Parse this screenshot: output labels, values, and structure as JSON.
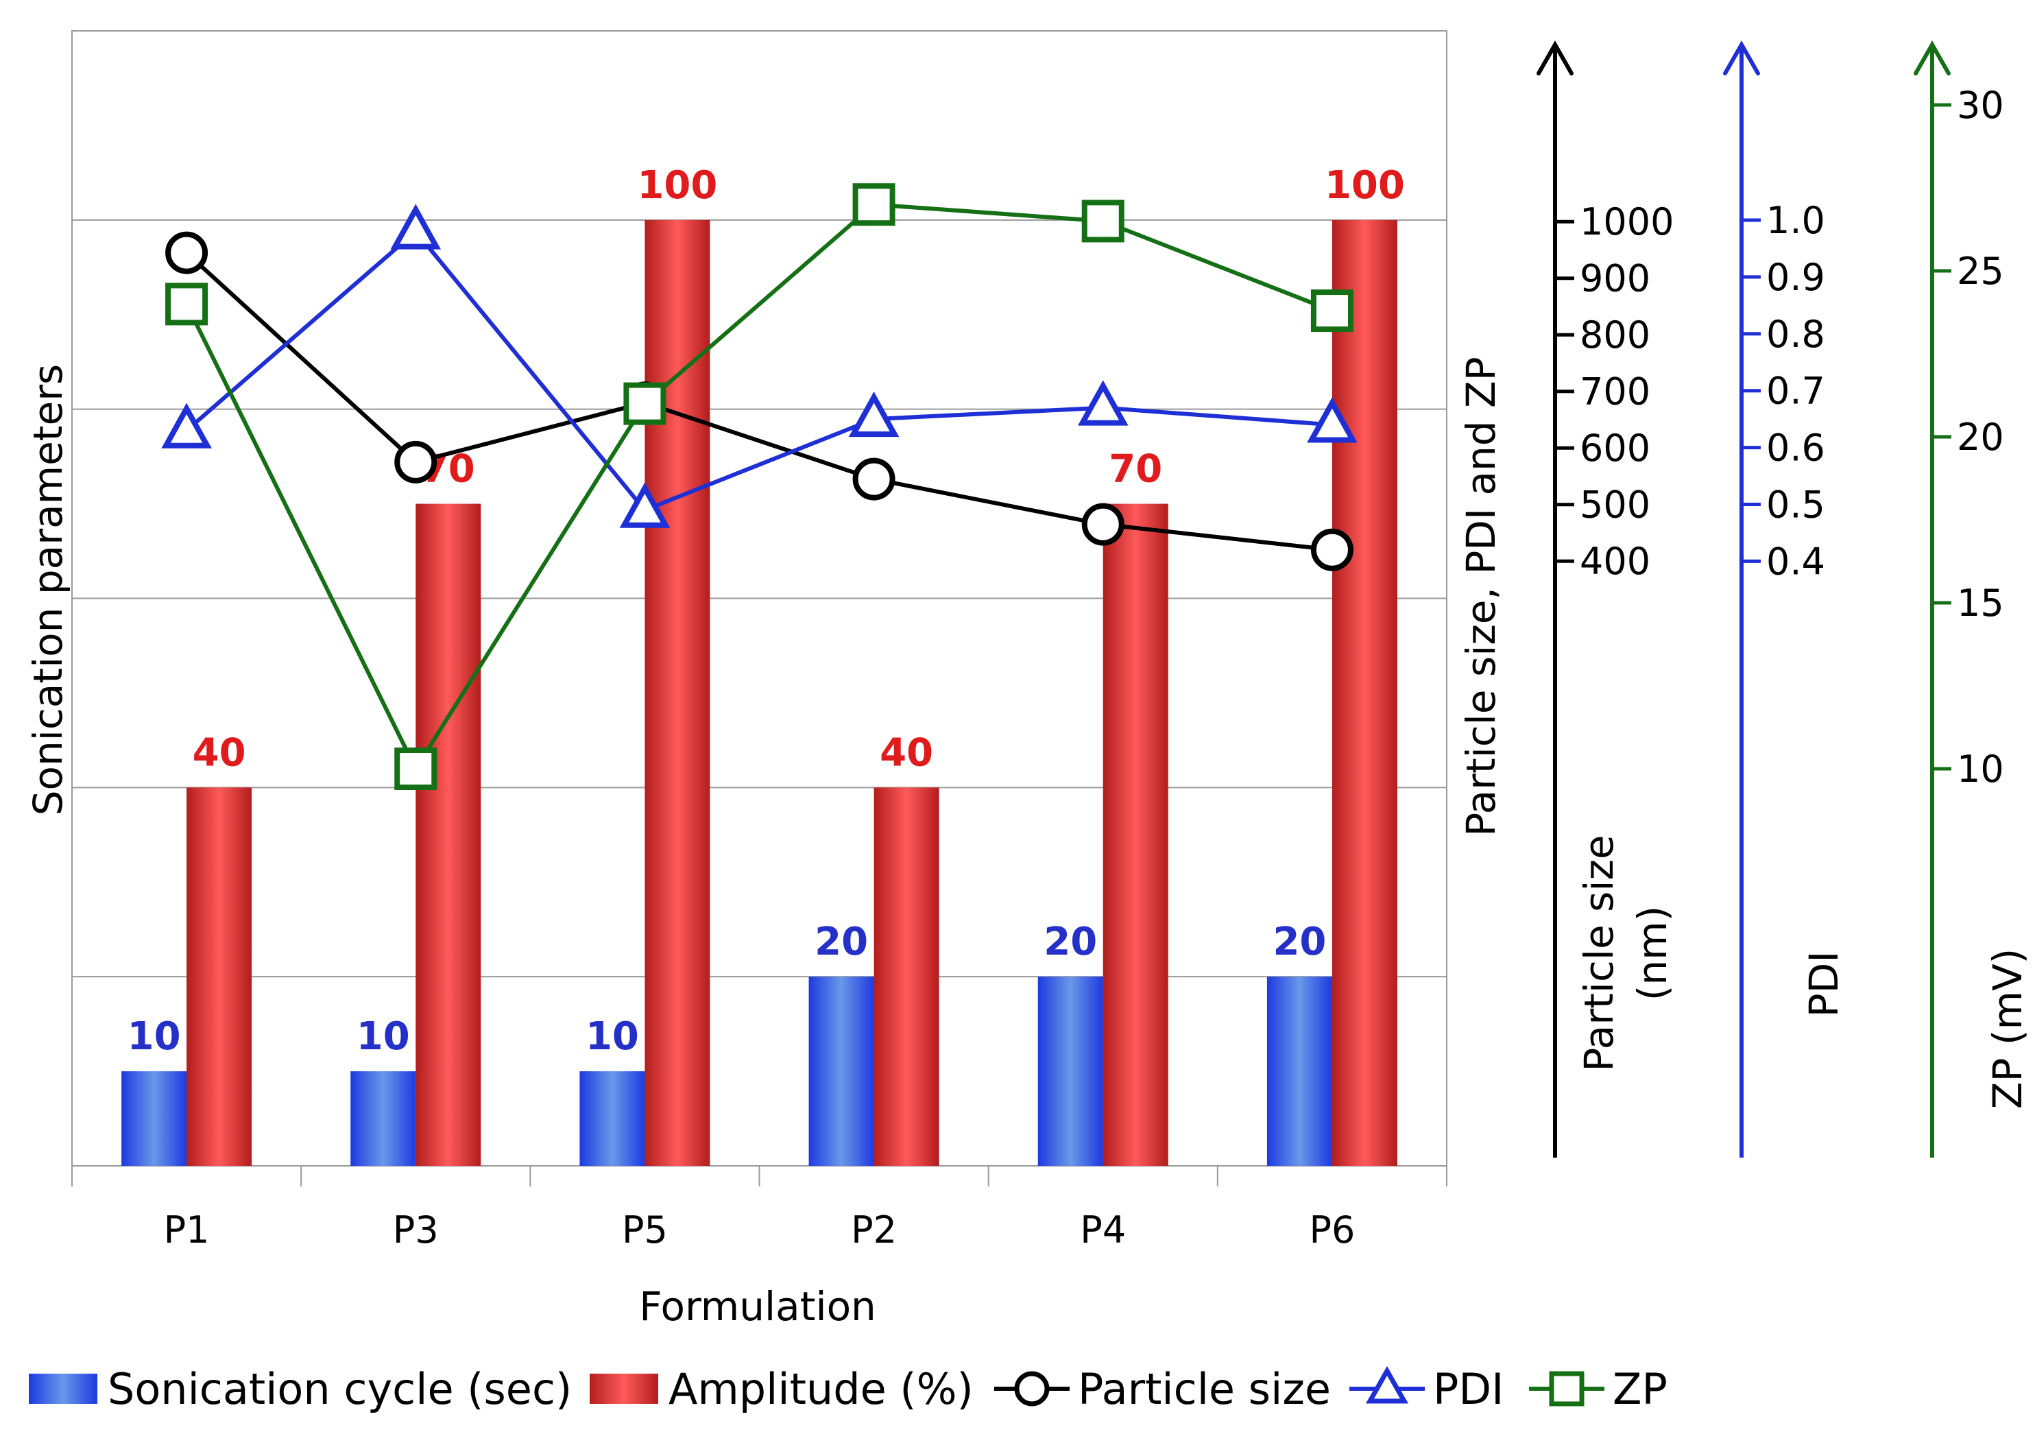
{
  "chart_data": {
    "type": "bar",
    "xlabel": "Formulation",
    "ylabel": "Sonication parameters",
    "categories": [
      "P1",
      "P3",
      "P5",
      "P2",
      "P4",
      "P6"
    ],
    "series": [
      {
        "name": "Sonication cycle (sec)",
        "type": "bar",
        "color": "#2f54e8",
        "values": [
          10,
          10,
          10,
          20,
          20,
          20
        ]
      },
      {
        "name": "Amplitude (%)",
        "type": "bar",
        "color": "#e03a3a",
        "values": [
          40,
          70,
          100,
          40,
          70,
          100
        ]
      },
      {
        "name": "Particle size",
        "type": "line",
        "axis": "particle_size",
        "color": "#000000",
        "marker": "circle",
        "values": [
          945,
          575,
          680,
          545,
          465,
          420
        ]
      },
      {
        "name": "PDI",
        "type": "line",
        "axis": "pdi",
        "color": "#1f2fd6",
        "marker": "triangle",
        "values": [
          0.63,
          0.98,
          0.49,
          0.65,
          0.67,
          0.64
        ]
      },
      {
        "name": "ZP",
        "type": "line",
        "axis": "zp",
        "color": "#157015",
        "marker": "square",
        "values": [
          24,
          10,
          21,
          27,
          26.5,
          23.8
        ]
      }
    ],
    "primary_axis": {
      "ylim": [
        0,
        120
      ],
      "grid": true,
      "tick_labels_shown": false
    },
    "secondary_axes": {
      "combined_title": "Particle size, PDI and ZP",
      "particle_size": {
        "title": "Particle size (nm)",
        "title_lines": [
          "Particle size",
          "(nm)"
        ],
        "color": "#000000",
        "ticks": [
          400,
          500,
          600,
          700,
          800,
          900,
          1000
        ]
      },
      "pdi": {
        "title": "PDI",
        "color": "#1f2fd6",
        "ticks": [
          "0.4",
          "0.5",
          "0.6",
          "0.7",
          "0.8",
          "0.9",
          "1.0"
        ]
      },
      "zp": {
        "title": "ZP (mV)",
        "color": "#157015",
        "ticks": [
          10,
          15,
          20,
          25,
          30
        ]
      }
    },
    "legend_position": "bottom"
  }
}
